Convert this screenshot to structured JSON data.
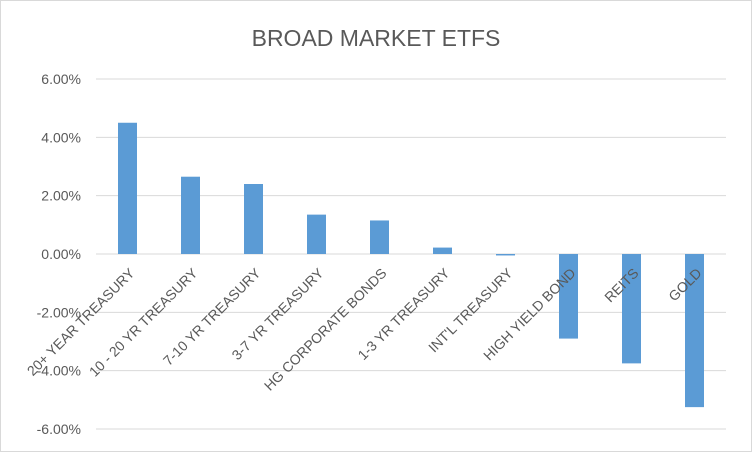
{
  "chart_data": {
    "type": "bar",
    "title": "BROAD MARKET ETFS",
    "xlabel": "",
    "ylabel": "",
    "categories": [
      "20+ YEAR TREASURY",
      "10 - 20 YR TREASURY",
      "7-10 YR TREASURY",
      "3-7 YR TREASURY",
      "HG CORPORATE BONDS",
      "1-3 YR TREASURY",
      "INT'L TREASURY",
      "HIGH YIELD BOND",
      "REITS",
      "GOLD"
    ],
    "values": [
      4.5,
      2.65,
      2.4,
      1.35,
      1.15,
      0.22,
      -0.05,
      -2.9,
      -3.75,
      -5.25
    ],
    "ylim": [
      -6,
      6
    ],
    "yticks": [
      6,
      4,
      2,
      0,
      -2,
      -4,
      -6
    ],
    "ytick_labels": [
      "6.00%",
      "4.00%",
      "2.00%",
      "0.00%",
      "-2.00%",
      "-4.00%",
      "-6.00%"
    ],
    "grid": true,
    "legend": "none",
    "bar_color": "#5b9bd5"
  }
}
